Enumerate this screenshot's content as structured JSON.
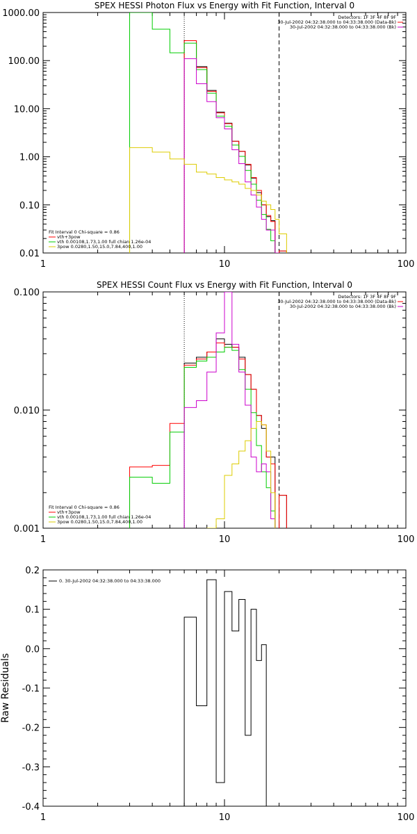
{
  "chart_data": [
    {
      "type": "line",
      "title": "SPEX HESSI Photon Flux vs Energy with Fit Function, Interval 0",
      "xscale": "log",
      "yscale": "log",
      "xlim": [
        1,
        100
      ],
      "ylim": [
        0.01,
        1000
      ],
      "xticks": [
        {
          "v": 1,
          "label": "1"
        },
        {
          "v": 10,
          "label": "10"
        },
        {
          "v": 100,
          "label": "100"
        }
      ],
      "yticks": [
        {
          "v": 0.01,
          "label": "0.01"
        },
        {
          "v": 0.1,
          "label": "0.10"
        },
        {
          "v": 1,
          "label": "1.00"
        },
        {
          "v": 10,
          "label": "10.00"
        },
        {
          "v": 100,
          "label": "100.00"
        },
        {
          "v": 1000,
          "label": "1000.00"
        }
      ],
      "vlines": [
        {
          "x": 6,
          "style": "dotted"
        },
        {
          "x": 20,
          "style": "dashed"
        }
      ],
      "header_lines": [
        "Detectors: 1F 3F 4F 8F 9F",
        "30-Jul-2002 04:32:38.000 to 04:33:38.000 (Data-Bk)",
        "30-Jul-2002 04:32:38.000 to 04:33:38.000 (Bk)"
      ],
      "fit_text": [
        "Fit Interval  0   Chi-square = 0.86"
      ],
      "legend": [
        {
          "label": "vth+3pow",
          "color": "#ff0000"
        },
        {
          "label": "vth 0.00108,1.73,1.00  full chian 1.26e-04",
          "color": "#00cc00"
        },
        {
          "label": "3pow 0.0280,1.50,15.0,7.84,400,1.00",
          "color": "#ddcc00"
        }
      ],
      "edges": [
        3.0,
        4.0,
        5.0,
        6.0,
        7.0,
        8.0,
        9.0,
        10.0,
        11.0,
        12.0,
        13.0,
        14.0,
        15.0,
        16.0,
        17.0,
        18.0,
        19.0,
        20.0,
        22.0
      ],
      "series": [
        {
          "key": "data-bk",
          "color": "#000000",
          "start": 6.0,
          "values": [
            null,
            null,
            null,
            260,
            75,
            24,
            8.5,
            5,
            2.1,
            1.3,
            0.68,
            0.36,
            0.18,
            0.1,
            0.057,
            0.047,
            null,
            0.011
          ]
        },
        {
          "key": "vth-3pow",
          "color": "#ff0000",
          "start": 6.0,
          "values": [
            null,
            null,
            null,
            260,
            72,
            23,
            8.2,
            4.9,
            2.1,
            1.3,
            0.7,
            0.37,
            0.2,
            0.1,
            0.06,
            0.045,
            null,
            0.011
          ]
        },
        {
          "key": "vth",
          "color": "#00cc00",
          "start": 3.0,
          "values": [
            1000,
            450,
            145,
            230,
            65,
            21,
            7,
            4.3,
            1.75,
            1.02,
            0.52,
            0.27,
            0.125,
            0.063,
            0.031,
            0.018,
            0.01,
            null
          ]
        },
        {
          "key": "bk",
          "color": "#cc00cc",
          "start": 6.0,
          "values": [
            null,
            null,
            null,
            110,
            33,
            14,
            6.5,
            3.8,
            1.4,
            0.72,
            0.3,
            0.16,
            0.09,
            0.05,
            0.03,
            0.03,
            0.01,
            null
          ]
        },
        {
          "key": "3pow",
          "color": "#ddcc00",
          "start": 3.0,
          "values": [
            1.55,
            1.25,
            0.9,
            0.7,
            0.48,
            0.44,
            0.37,
            0.33,
            0.3,
            0.27,
            0.22,
            0.2,
            0.16,
            0.12,
            0.1,
            0.08,
            0.05,
            0.025
          ]
        }
      ]
    },
    {
      "type": "line",
      "title": "SPEX HESSI Count Flux vs Energy with Fit Function, Interval 0",
      "xscale": "log",
      "yscale": "log",
      "xlim": [
        1,
        100
      ],
      "ylim": [
        0.001,
        0.1
      ],
      "xticks": [
        {
          "v": 1,
          "label": "1"
        },
        {
          "v": 10,
          "label": "10"
        },
        {
          "v": 100,
          "label": "100"
        }
      ],
      "yticks": [
        {
          "v": 0.001,
          "label": "0.001"
        },
        {
          "v": 0.01,
          "label": "0.010"
        },
        {
          "v": 0.1,
          "label": "0.100"
        }
      ],
      "vlines": [
        {
          "x": 6,
          "style": "dotted"
        },
        {
          "x": 20,
          "style": "dashed"
        }
      ],
      "header_lines": [
        "Detectors: 1F 3F 4F 8F 9F",
        "30-Jul-2002 04:32:38.000 to 04:33:38.000 (Data-Bk)",
        "30-Jul-2002 04:32:38.000 to 04:33:38.000 (Bk)"
      ],
      "fit_text": [
        "Fit Interval  0   Chi-square = 0.86"
      ],
      "legend": [
        {
          "label": "vth+3pow",
          "color": "#ff0000"
        },
        {
          "label": "vth 0.00108,1.73,1.00  full chian 1.26e-04",
          "color": "#00cc00"
        },
        {
          "label": "3pow 0.0280,1.50,15.0,7.84,400,1.00",
          "color": "#ddcc00"
        }
      ],
      "edges": [
        3.0,
        4.0,
        5.0,
        6.0,
        7.0,
        8.0,
        9.0,
        10.0,
        11.0,
        12.0,
        13.0,
        14.0,
        15.0,
        16.0,
        17.0,
        18.0,
        19.0,
        20.0,
        22.0
      ],
      "series": [
        {
          "key": "data-bk",
          "color": "#000000",
          "start": 6.0,
          "values": [
            null,
            null,
            null,
            0.025,
            0.028,
            0.031,
            0.04,
            0.036,
            0.034,
            0.028,
            0.02,
            0.015,
            0.009,
            0.007,
            0.004,
            0.004,
            null,
            0.0019
          ]
        },
        {
          "key": "vth-3pow",
          "color": "#ff0000",
          "start": 3.0,
          "values": [
            0.0033,
            0.0034,
            0.0077,
            0.024,
            0.027,
            0.031,
            0.037,
            0.034,
            0.034,
            0.027,
            0.02,
            0.015,
            0.009,
            0.0075,
            0.004,
            0.0035,
            0.0008,
            0.0019
          ]
        },
        {
          "key": "vth",
          "color": "#00cc00",
          "start": 3.0,
          "values": [
            0.0027,
            0.0024,
            0.0065,
            0.023,
            0.026,
            0.028,
            0.031,
            0.034,
            0.032,
            0.022,
            0.015,
            0.0095,
            0.005,
            0.003,
            0.0022,
            0.0014,
            0.0008,
            null
          ]
        },
        {
          "key": "bk",
          "color": "#cc00cc",
          "start": 6.0,
          "values": [
            null,
            null,
            null,
            0.0105,
            0.012,
            0.021,
            0.045,
            0.1,
            0.036,
            0.021,
            0.011,
            0.004,
            0.003,
            0.0035,
            0.003,
            0.0012,
            0.0007,
            null
          ]
        },
        {
          "key": "3pow",
          "color": "#ddcc00",
          "start": 6.0,
          "values": [
            null,
            null,
            null,
            0.0008,
            0.0009,
            0.001,
            0.0012,
            0.0028,
            0.0035,
            0.0045,
            0.0055,
            0.007,
            0.008,
            0.0075,
            0.0045,
            0.002,
            0.0008,
            0.0008
          ]
        }
      ]
    },
    {
      "type": "line",
      "title": "",
      "ylabel": "Raw Residuals",
      "xscale": "log",
      "yscale": "linear",
      "xlim": [
        1,
        100
      ],
      "ylim": [
        -0.4,
        0.2
      ],
      "xticks": [
        {
          "v": 1,
          "label": "1"
        },
        {
          "v": 10,
          "label": "10"
        },
        {
          "v": 100,
          "label": "100"
        }
      ],
      "yticks": [
        {
          "v": 0.2,
          "label": "0.2"
        },
        {
          "v": 0.1,
          "label": "0.1"
        },
        {
          "v": 0.0,
          "label": "0.0"
        },
        {
          "v": -0.1,
          "label": "-0.1"
        },
        {
          "v": -0.2,
          "label": "-0.2"
        },
        {
          "v": -0.3,
          "label": "-0.3"
        },
        {
          "v": -0.4,
          "label": "-0.4"
        }
      ],
      "legend": [
        {
          "label": "0. 30-Jul-2002 04:32:38.000 to 04:33:38.000",
          "color": "#000000"
        }
      ],
      "edges": [
        6.0,
        7.0,
        8.0,
        9.0,
        10.0,
        11.0,
        12.0,
        13.0,
        14.0,
        15.0,
        16.0,
        17.0,
        18.0,
        19.0,
        20.0
      ],
      "series": [
        {
          "key": "residuals",
          "color": "#000000",
          "start": 6.0,
          "values": [
            0.08,
            -0.145,
            0.175,
            -0.34,
            0.145,
            0.045,
            0.125,
            -0.22,
            0.1,
            -0.03,
            0.01,
            null,
            null,
            null
          ]
        }
      ]
    }
  ]
}
